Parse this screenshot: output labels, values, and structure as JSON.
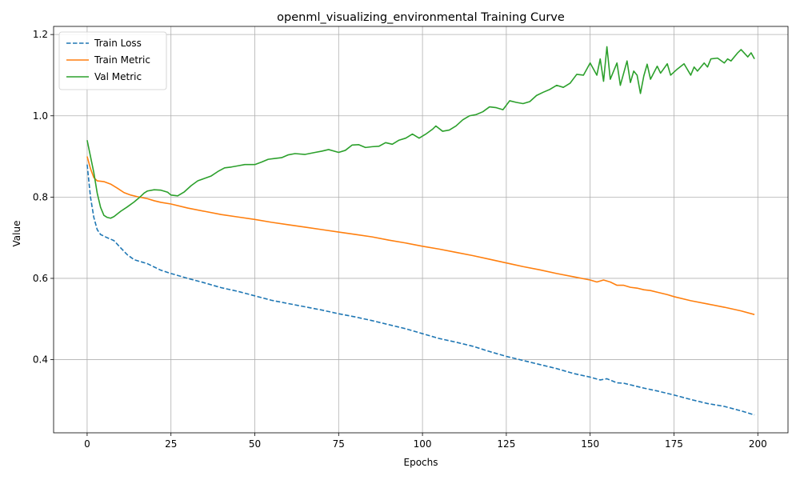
{
  "chart_data": {
    "type": "line",
    "title": "openml_visualizing_environmental Training Curve",
    "xlabel": "Epochs",
    "ylabel": "Value",
    "xlim": [
      -10,
      209
    ],
    "ylim": [
      0.22,
      1.22
    ],
    "xticks": [
      0,
      25,
      50,
      75,
      100,
      125,
      150,
      175,
      200
    ],
    "yticks": [
      0.4,
      0.6,
      0.8,
      1.0,
      1.2
    ],
    "xtick_labels": [
      "0",
      "25",
      "50",
      "75",
      "100",
      "125",
      "150",
      "175",
      "200"
    ],
    "ytick_labels": [
      "0.4",
      "0.6",
      "0.8",
      "1.0",
      "1.2"
    ],
    "grid": true,
    "legend_position": "top-left",
    "series": [
      {
        "name": "Train Loss",
        "color": "#1f77b4",
        "style": "dashed",
        "points": [
          [
            0,
            0.88
          ],
          [
            1,
            0.8
          ],
          [
            2,
            0.75
          ],
          [
            3,
            0.72
          ],
          [
            4,
            0.708
          ],
          [
            6,
            0.7
          ],
          [
            8,
            0.693
          ],
          [
            10,
            0.675
          ],
          [
            12,
            0.658
          ],
          [
            14,
            0.646
          ],
          [
            16,
            0.641
          ],
          [
            18,
            0.636
          ],
          [
            20,
            0.628
          ],
          [
            22,
            0.62
          ],
          [
            25,
            0.612
          ],
          [
            30,
            0.6
          ],
          [
            35,
            0.589
          ],
          [
            40,
            0.577
          ],
          [
            45,
            0.568
          ],
          [
            50,
            0.557
          ],
          [
            55,
            0.546
          ],
          [
            60,
            0.538
          ],
          [
            65,
            0.53
          ],
          [
            70,
            0.522
          ],
          [
            75,
            0.513
          ],
          [
            80,
            0.505
          ],
          [
            85,
            0.496
          ],
          [
            90,
            0.486
          ],
          [
            95,
            0.476
          ],
          [
            100,
            0.464
          ],
          [
            105,
            0.452
          ],
          [
            110,
            0.443
          ],
          [
            115,
            0.433
          ],
          [
            120,
            0.42
          ],
          [
            125,
            0.408
          ],
          [
            130,
            0.398
          ],
          [
            135,
            0.388
          ],
          [
            140,
            0.378
          ],
          [
            145,
            0.366
          ],
          [
            150,
            0.357
          ],
          [
            153,
            0.35
          ],
          [
            155,
            0.353
          ],
          [
            158,
            0.343
          ],
          [
            160,
            0.342
          ],
          [
            163,
            0.336
          ],
          [
            166,
            0.33
          ],
          [
            170,
            0.323
          ],
          [
            175,
            0.313
          ],
          [
            180,
            0.302
          ],
          [
            185,
            0.292
          ],
          [
            190,
            0.285
          ],
          [
            195,
            0.274
          ],
          [
            199,
            0.264
          ]
        ]
      },
      {
        "name": "Train Metric",
        "color": "#ff7f0e",
        "style": "solid",
        "points": [
          [
            0,
            0.9
          ],
          [
            1,
            0.87
          ],
          [
            2,
            0.848
          ],
          [
            3,
            0.84
          ],
          [
            5,
            0.838
          ],
          [
            7,
            0.832
          ],
          [
            9,
            0.822
          ],
          [
            11,
            0.811
          ],
          [
            13,
            0.805
          ],
          [
            15,
            0.801
          ],
          [
            18,
            0.796
          ],
          [
            20,
            0.791
          ],
          [
            22,
            0.787
          ],
          [
            25,
            0.783
          ],
          [
            30,
            0.773
          ],
          [
            35,
            0.765
          ],
          [
            40,
            0.757
          ],
          [
            45,
            0.751
          ],
          [
            50,
            0.745
          ],
          [
            55,
            0.738
          ],
          [
            60,
            0.732
          ],
          [
            65,
            0.726
          ],
          [
            70,
            0.72
          ],
          [
            75,
            0.714
          ],
          [
            80,
            0.708
          ],
          [
            85,
            0.702
          ],
          [
            90,
            0.694
          ],
          [
            95,
            0.687
          ],
          [
            100,
            0.679
          ],
          [
            105,
            0.672
          ],
          [
            110,
            0.664
          ],
          [
            115,
            0.656
          ],
          [
            120,
            0.647
          ],
          [
            125,
            0.638
          ],
          [
            130,
            0.629
          ],
          [
            135,
            0.621
          ],
          [
            140,
            0.612
          ],
          [
            145,
            0.604
          ],
          [
            150,
            0.596
          ],
          [
            152,
            0.591
          ],
          [
            154,
            0.596
          ],
          [
            156,
            0.591
          ],
          [
            158,
            0.583
          ],
          [
            160,
            0.583
          ],
          [
            162,
            0.578
          ],
          [
            164,
            0.576
          ],
          [
            166,
            0.572
          ],
          [
            168,
            0.57
          ],
          [
            170,
            0.566
          ],
          [
            173,
            0.56
          ],
          [
            175,
            0.555
          ],
          [
            180,
            0.545
          ],
          [
            185,
            0.537
          ],
          [
            190,
            0.529
          ],
          [
            195,
            0.52
          ],
          [
            199,
            0.511
          ]
        ]
      },
      {
        "name": "Val Metric",
        "color": "#2ca02c",
        "style": "solid",
        "points": [
          [
            0,
            0.94
          ],
          [
            1,
            0.9
          ],
          [
            2,
            0.86
          ],
          [
            3,
            0.81
          ],
          [
            4,
            0.775
          ],
          [
            5,
            0.755
          ],
          [
            6,
            0.75
          ],
          [
            7,
            0.748
          ],
          [
            8,
            0.752
          ],
          [
            10,
            0.765
          ],
          [
            12,
            0.776
          ],
          [
            14,
            0.788
          ],
          [
            16,
            0.802
          ],
          [
            17,
            0.81
          ],
          [
            18,
            0.815
          ],
          [
            20,
            0.818
          ],
          [
            22,
            0.817
          ],
          [
            24,
            0.812
          ],
          [
            25,
            0.805
          ],
          [
            27,
            0.803
          ],
          [
            29,
            0.813
          ],
          [
            31,
            0.828
          ],
          [
            33,
            0.84
          ],
          [
            35,
            0.846
          ],
          [
            37,
            0.852
          ],
          [
            39,
            0.863
          ],
          [
            41,
            0.872
          ],
          [
            43,
            0.874
          ],
          [
            45,
            0.877
          ],
          [
            47,
            0.88
          ],
          [
            50,
            0.88
          ],
          [
            52,
            0.886
          ],
          [
            54,
            0.893
          ],
          [
            56,
            0.895
          ],
          [
            58,
            0.897
          ],
          [
            60,
            0.904
          ],
          [
            62,
            0.907
          ],
          [
            65,
            0.905
          ],
          [
            68,
            0.91
          ],
          [
            70,
            0.913
          ],
          [
            72,
            0.917
          ],
          [
            75,
            0.91
          ],
          [
            77,
            0.915
          ],
          [
            79,
            0.928
          ],
          [
            81,
            0.929
          ],
          [
            83,
            0.922
          ],
          [
            85,
            0.924
          ],
          [
            87,
            0.925
          ],
          [
            89,
            0.934
          ],
          [
            91,
            0.93
          ],
          [
            93,
            0.94
          ],
          [
            95,
            0.945
          ],
          [
            97,
            0.955
          ],
          [
            99,
            0.945
          ],
          [
            101,
            0.955
          ],
          [
            103,
            0.967
          ],
          [
            104,
            0.975
          ],
          [
            106,
            0.962
          ],
          [
            108,
            0.965
          ],
          [
            110,
            0.975
          ],
          [
            112,
            0.99
          ],
          [
            114,
            1.0
          ],
          [
            116,
            1.003
          ],
          [
            118,
            1.01
          ],
          [
            120,
            1.022
          ],
          [
            122,
            1.02
          ],
          [
            124,
            1.015
          ],
          [
            126,
            1.037
          ],
          [
            128,
            1.033
          ],
          [
            130,
            1.03
          ],
          [
            132,
            1.035
          ],
          [
            134,
            1.05
          ],
          [
            136,
            1.058
          ],
          [
            138,
            1.065
          ],
          [
            140,
            1.075
          ],
          [
            142,
            1.07
          ],
          [
            144,
            1.08
          ],
          [
            146,
            1.102
          ],
          [
            148,
            1.1
          ],
          [
            150,
            1.13
          ],
          [
            152,
            1.1
          ],
          [
            153,
            1.14
          ],
          [
            154,
            1.085
          ],
          [
            155,
            1.17
          ],
          [
            156,
            1.09
          ],
          [
            158,
            1.13
          ],
          [
            159,
            1.075
          ],
          [
            161,
            1.135
          ],
          [
            162,
            1.082
          ],
          [
            163,
            1.11
          ],
          [
            164,
            1.1
          ],
          [
            165,
            1.055
          ],
          [
            166,
            1.098
          ],
          [
            167,
            1.127
          ],
          [
            168,
            1.09
          ],
          [
            170,
            1.122
          ],
          [
            171,
            1.105
          ],
          [
            173,
            1.128
          ],
          [
            174,
            1.1
          ],
          [
            176,
            1.115
          ],
          [
            178,
            1.128
          ],
          [
            180,
            1.1
          ],
          [
            181,
            1.12
          ],
          [
            182,
            1.11
          ],
          [
            184,
            1.13
          ],
          [
            185,
            1.12
          ],
          [
            186,
            1.14
          ],
          [
            188,
            1.142
          ],
          [
            190,
            1.13
          ],
          [
            191,
            1.14
          ],
          [
            192,
            1.135
          ],
          [
            194,
            1.155
          ],
          [
            195,
            1.163
          ],
          [
            197,
            1.145
          ],
          [
            198,
            1.155
          ],
          [
            199,
            1.14
          ]
        ]
      }
    ]
  }
}
